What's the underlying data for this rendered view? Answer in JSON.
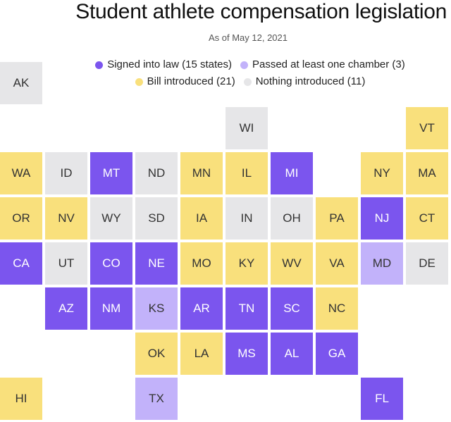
{
  "title": "Student athlete compensation legislation",
  "subtitle": "As of May 12, 2021",
  "colors": {
    "signed": "#7B55EE",
    "passed": "#C2B2FA",
    "bill": "#F9E07C",
    "nothing": "#E6E6E8"
  },
  "legend": [
    {
      "status": "signed",
      "label": "Signed into law (15 states)"
    },
    {
      "status": "passed",
      "label": "Passed at least one chamber (3)"
    },
    {
      "status": "bill",
      "label": "Bill introduced (21)"
    },
    {
      "status": "nothing",
      "label": "Nothing introduced (11)"
    }
  ],
  "states": [
    {
      "abbr": "AK",
      "status": "nothing",
      "col": 0,
      "row": 0
    },
    {
      "abbr": "WI",
      "status": "nothing",
      "col": 5,
      "row": 1
    },
    {
      "abbr": "VT",
      "status": "bill",
      "col": 9,
      "row": 1
    },
    {
      "abbr": "WA",
      "status": "bill",
      "col": 0,
      "row": 2
    },
    {
      "abbr": "ID",
      "status": "nothing",
      "col": 1,
      "row": 2
    },
    {
      "abbr": "MT",
      "status": "signed",
      "col": 2,
      "row": 2
    },
    {
      "abbr": "ND",
      "status": "nothing",
      "col": 3,
      "row": 2
    },
    {
      "abbr": "MN",
      "status": "bill",
      "col": 4,
      "row": 2
    },
    {
      "abbr": "IL",
      "status": "bill",
      "col": 5,
      "row": 2
    },
    {
      "abbr": "MI",
      "status": "signed",
      "col": 6,
      "row": 2
    },
    {
      "abbr": "NY",
      "status": "bill",
      "col": 8,
      "row": 2
    },
    {
      "abbr": "MA",
      "status": "bill",
      "col": 9,
      "row": 2
    },
    {
      "abbr": "OR",
      "status": "bill",
      "col": 0,
      "row": 3
    },
    {
      "abbr": "NV",
      "status": "bill",
      "col": 1,
      "row": 3
    },
    {
      "abbr": "WY",
      "status": "nothing",
      "col": 2,
      "row": 3
    },
    {
      "abbr": "SD",
      "status": "nothing",
      "col": 3,
      "row": 3
    },
    {
      "abbr": "IA",
      "status": "bill",
      "col": 4,
      "row": 3
    },
    {
      "abbr": "IN",
      "status": "nothing",
      "col": 5,
      "row": 3
    },
    {
      "abbr": "OH",
      "status": "nothing",
      "col": 6,
      "row": 3
    },
    {
      "abbr": "PA",
      "status": "bill",
      "col": 7,
      "row": 3
    },
    {
      "abbr": "NJ",
      "status": "signed",
      "col": 8,
      "row": 3
    },
    {
      "abbr": "CT",
      "status": "bill",
      "col": 9,
      "row": 3
    },
    {
      "abbr": "CA",
      "status": "signed",
      "col": 0,
      "row": 4
    },
    {
      "abbr": "UT",
      "status": "nothing",
      "col": 1,
      "row": 4
    },
    {
      "abbr": "CO",
      "status": "signed",
      "col": 2,
      "row": 4
    },
    {
      "abbr": "NE",
      "status": "signed",
      "col": 3,
      "row": 4
    },
    {
      "abbr": "MO",
      "status": "bill",
      "col": 4,
      "row": 4
    },
    {
      "abbr": "KY",
      "status": "bill",
      "col": 5,
      "row": 4
    },
    {
      "abbr": "WV",
      "status": "bill",
      "col": 6,
      "row": 4
    },
    {
      "abbr": "VA",
      "status": "bill",
      "col": 7,
      "row": 4
    },
    {
      "abbr": "MD",
      "status": "passed",
      "col": 8,
      "row": 4
    },
    {
      "abbr": "DE",
      "status": "nothing",
      "col": 9,
      "row": 4
    },
    {
      "abbr": "AZ",
      "status": "signed",
      "col": 1,
      "row": 5
    },
    {
      "abbr": "NM",
      "status": "signed",
      "col": 2,
      "row": 5
    },
    {
      "abbr": "KS",
      "status": "passed",
      "col": 3,
      "row": 5
    },
    {
      "abbr": "AR",
      "status": "signed",
      "col": 4,
      "row": 5
    },
    {
      "abbr": "TN",
      "status": "signed",
      "col": 5,
      "row": 5
    },
    {
      "abbr": "SC",
      "status": "signed",
      "col": 6,
      "row": 5
    },
    {
      "abbr": "NC",
      "status": "bill",
      "col": 7,
      "row": 5
    },
    {
      "abbr": "OK",
      "status": "bill",
      "col": 3,
      "row": 6
    },
    {
      "abbr": "LA",
      "status": "bill",
      "col": 4,
      "row": 6
    },
    {
      "abbr": "MS",
      "status": "signed",
      "col": 5,
      "row": 6
    },
    {
      "abbr": "AL",
      "status": "signed",
      "col": 6,
      "row": 6
    },
    {
      "abbr": "GA",
      "status": "signed",
      "col": 7,
      "row": 6
    },
    {
      "abbr": "HI",
      "status": "bill",
      "col": 0,
      "row": 7
    },
    {
      "abbr": "TX",
      "status": "passed",
      "col": 3,
      "row": 7
    },
    {
      "abbr": "FL",
      "status": "signed",
      "col": 8,
      "row": 7
    }
  ]
}
